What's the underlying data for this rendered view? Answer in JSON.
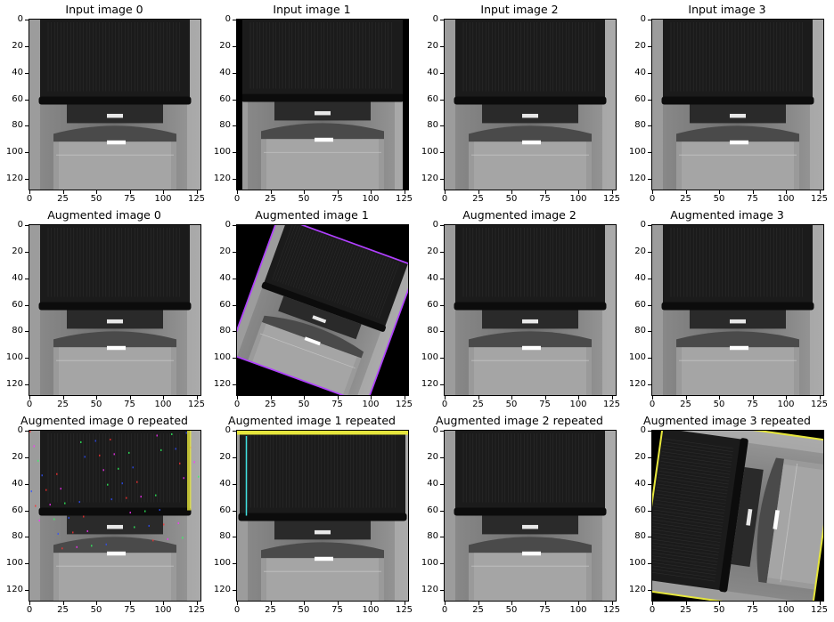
{
  "figure": {
    "panels": [
      {
        "title": "Input image 0",
        "variant": "normal"
      },
      {
        "title": "Input image 1",
        "variant": "dark-wide"
      },
      {
        "title": "Input image 2",
        "variant": "normal"
      },
      {
        "title": "Input image 3",
        "variant": "normal"
      },
      {
        "title": "Augmented image 0",
        "variant": "normal"
      },
      {
        "title": "Augmented image 1",
        "variant": "rotated"
      },
      {
        "title": "Augmented image 2",
        "variant": "normal"
      },
      {
        "title": "Augmented image 3",
        "variant": "normal"
      },
      {
        "title": "Augmented image 0 repeated",
        "variant": "noisy"
      },
      {
        "title": "Augmented image 1 repeated",
        "variant": "shrunk"
      },
      {
        "title": "Augmented image 2 repeated",
        "variant": "normal"
      },
      {
        "title": "Augmented image 3 repeated",
        "variant": "rotated90"
      }
    ],
    "yticks": [
      "0",
      "20",
      "40",
      "60",
      "80",
      "100",
      "120"
    ],
    "xticks": [
      "0",
      "25",
      "50",
      "75",
      "100",
      "125"
    ]
  },
  "colors": {
    "background": "#ffffff",
    "axis": "#000000",
    "cap": "#1a1a1a",
    "glass": "#8a8a8a"
  }
}
